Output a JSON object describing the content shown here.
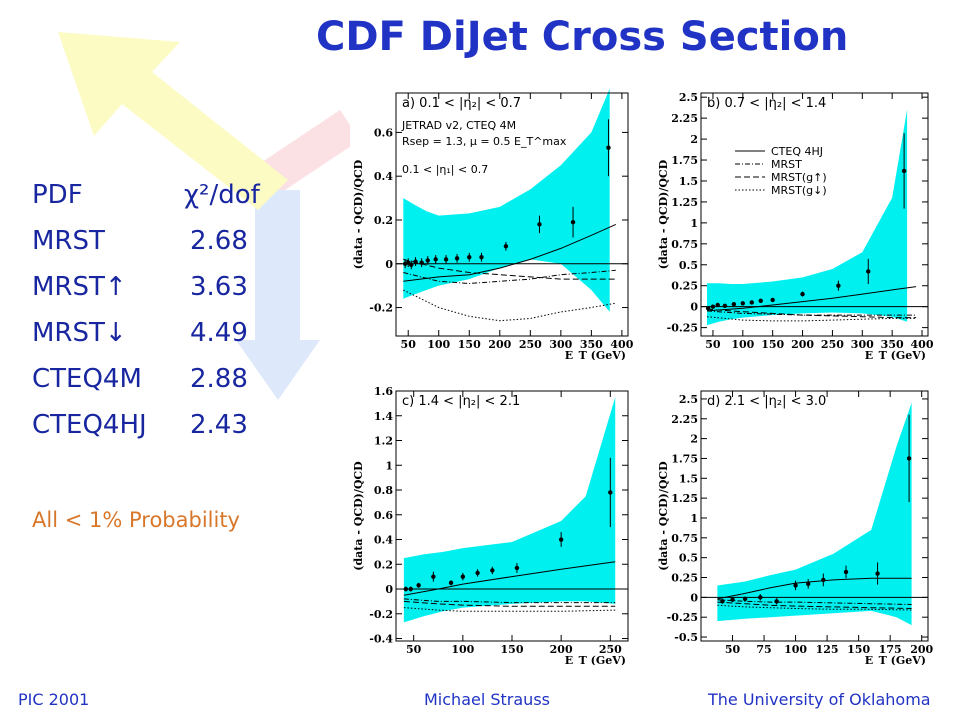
{
  "slide": {
    "title": "CDF DiJet Cross Section",
    "footer_left": "PIC 2001",
    "footer_center": "Michael Strauss",
    "footer_right": "The University of Oklahoma",
    "note": "All < 1% Probability",
    "colors": {
      "title": "#2133c4",
      "table": "#1826a0",
      "note": "#d8772a",
      "band": "#00f0f0"
    }
  },
  "pdf_table": {
    "header_name": "PDF",
    "header_value": "χ²/dof",
    "rows": [
      {
        "name": "MRST",
        "value": "2.68"
      },
      {
        "name": "MRST↑",
        "value": "3.63"
      },
      {
        "name": "MRST↓",
        "value": "4.49"
      },
      {
        "name": "CTEQ4M",
        "value": "2.88"
      },
      {
        "name": "CTEQ4HJ",
        "value": "2.43"
      }
    ]
  },
  "chart_data": [
    {
      "type": "scatter",
      "panel_label": "a) 0.1 < |η₂| < 0.7",
      "ylabel": "(data - QCD)/QCD",
      "xlabel": "E_T (GeV)",
      "xlim": [
        30,
        410
      ],
      "ylim": [
        -0.33,
        0.78
      ],
      "xticks": [
        50,
        100,
        150,
        200,
        250,
        300,
        350,
        400
      ],
      "yticks": [
        -0.2,
        0,
        0.2,
        0.4,
        0.6
      ],
      "annotations": [
        "JETRAD v2, CTEQ 4M",
        "Rsep = 1.3, μ = 0.5 E_T^max",
        "0.1 < |η₁| < 0.7"
      ],
      "points": [
        [
          45,
          0.0
        ],
        [
          50,
          0.005
        ],
        [
          55,
          -0.005
        ],
        [
          62,
          0.01
        ],
        [
          72,
          0.005
        ],
        [
          82,
          0.015
        ],
        [
          95,
          0.02
        ],
        [
          112,
          0.02
        ],
        [
          130,
          0.025
        ],
        [
          150,
          0.03
        ],
        [
          170,
          0.03
        ],
        [
          210,
          0.08
        ],
        [
          265,
          0.18
        ],
        [
          320,
          0.19
        ],
        [
          378,
          0.53
        ]
      ],
      "errors": [
        0.02,
        0.02,
        0.02,
        0.02,
        0.02,
        0.02,
        0.02,
        0.02,
        0.02,
        0.02,
        0.02,
        0.02,
        0.04,
        0.07,
        0.13
      ],
      "band_x": [
        42,
        60,
        80,
        100,
        150,
        200,
        250,
        300,
        350,
        380
      ],
      "band_low": [
        -0.16,
        -0.14,
        -0.12,
        -0.1,
        -0.07,
        -0.02,
        0.02,
        0.0,
        -0.12,
        -0.22
      ],
      "band_high": [
        0.3,
        0.27,
        0.24,
        0.22,
        0.23,
        0.26,
        0.34,
        0.45,
        0.6,
        0.8
      ],
      "curves": [
        {
          "name": "CTEQ 4HJ",
          "style": "solid",
          "x": [
            42,
            100,
            150,
            200,
            250,
            300,
            350,
            390
          ],
          "y": [
            -0.08,
            -0.06,
            -0.05,
            -0.02,
            0.02,
            0.07,
            0.13,
            0.18
          ]
        },
        {
          "name": "MRST",
          "style": "dashdot",
          "x": [
            42,
            100,
            150,
            200,
            250,
            300,
            350,
            390
          ],
          "y": [
            -0.04,
            -0.08,
            -0.09,
            -0.08,
            -0.07,
            -0.05,
            -0.04,
            -0.03
          ]
        },
        {
          "name": "MRST(g↑)",
          "style": "dashed",
          "x": [
            42,
            100,
            150,
            200,
            250,
            300,
            350,
            390
          ],
          "y": [
            0.02,
            -0.02,
            -0.04,
            -0.05,
            -0.06,
            -0.07,
            -0.07,
            -0.07
          ]
        },
        {
          "name": "MRST(g↓)",
          "style": "dotted",
          "x": [
            42,
            100,
            150,
            200,
            250,
            300,
            350,
            390
          ],
          "y": [
            -0.12,
            -0.2,
            -0.24,
            -0.26,
            -0.25,
            -0.22,
            -0.2,
            -0.18
          ]
        }
      ]
    },
    {
      "type": "scatter",
      "panel_label": "b) 0.7 < |η₂| < 1.4",
      "ylabel": "(data - QCD)/QCD",
      "xlabel": "E_T (GeV)",
      "xlim": [
        30,
        410
      ],
      "ylim": [
        -0.35,
        2.55
      ],
      "xticks": [
        50,
        100,
        150,
        200,
        250,
        300,
        350,
        400
      ],
      "yticks": [
        -0.25,
        0,
        0.25,
        0.5,
        0.75,
        1,
        1.25,
        1.5,
        1.75,
        2,
        2.25,
        2.5
      ],
      "legend": [
        "CTEQ 4HJ",
        "MRST",
        "MRST(g↑)",
        "MRST(g↓)"
      ],
      "points": [
        [
          42,
          -0.02
        ],
        [
          50,
          0.0
        ],
        [
          58,
          0.02
        ],
        [
          70,
          0.01
        ],
        [
          85,
          0.03
        ],
        [
          100,
          0.04
        ],
        [
          115,
          0.05
        ],
        [
          130,
          0.07
        ],
        [
          150,
          0.08
        ],
        [
          200,
          0.15
        ],
        [
          260,
          0.25
        ],
        [
          310,
          0.42
        ],
        [
          370,
          1.62
        ]
      ],
      "errors": [
        0.02,
        0.02,
        0.02,
        0.02,
        0.02,
        0.02,
        0.02,
        0.02,
        0.02,
        0.03,
        0.06,
        0.15,
        0.45
      ],
      "band_x": [
        40,
        60,
        80,
        100,
        150,
        200,
        250,
        300,
        350,
        375
      ],
      "band_low": [
        -0.22,
        -0.18,
        -0.15,
        -0.13,
        -0.1,
        -0.08,
        -0.07,
        -0.08,
        -0.12,
        -0.18
      ],
      "band_high": [
        0.28,
        0.28,
        0.27,
        0.27,
        0.3,
        0.35,
        0.45,
        0.65,
        1.3,
        2.35
      ],
      "curves": [
        {
          "name": "CTEQ 4HJ",
          "style": "solid",
          "x": [
            40,
            100,
            150,
            200,
            250,
            300,
            350,
            390
          ],
          "y": [
            -0.05,
            -0.02,
            0.02,
            0.06,
            0.1,
            0.15,
            0.2,
            0.24
          ]
        },
        {
          "name": "MRST",
          "style": "dashdot",
          "x": [
            40,
            100,
            150,
            200,
            250,
            300,
            350,
            390
          ],
          "y": [
            -0.05,
            -0.08,
            -0.09,
            -0.1,
            -0.1,
            -0.1,
            -0.1,
            -0.1
          ]
        },
        {
          "name": "MRST(g↑)",
          "style": "dashed",
          "x": [
            40,
            100,
            150,
            200,
            250,
            300,
            350,
            390
          ],
          "y": [
            -0.03,
            -0.06,
            -0.08,
            -0.1,
            -0.11,
            -0.12,
            -0.13,
            -0.13
          ]
        },
        {
          "name": "MRST(g↓)",
          "style": "dotted",
          "x": [
            40,
            100,
            150,
            200,
            250,
            300,
            350,
            390
          ],
          "y": [
            -0.12,
            -0.16,
            -0.17,
            -0.17,
            -0.16,
            -0.15,
            -0.14,
            -0.14
          ]
        }
      ]
    },
    {
      "type": "scatter",
      "panel_label": "c) 1.4 < |η₂| < 2.1",
      "ylabel": "(data - QCD)/QCD",
      "xlabel": "E_T (GeV)",
      "xlim": [
        32,
        268
      ],
      "ylim": [
        -0.42,
        1.6
      ],
      "xticks": [
        50,
        100,
        150,
        200,
        250
      ],
      "yticks": [
        -0.4,
        -0.2,
        0,
        0.2,
        0.4,
        0.6,
        0.8,
        1,
        1.2,
        1.4,
        1.6
      ],
      "points": [
        [
          42,
          0.0
        ],
        [
          47,
          0.0
        ],
        [
          55,
          0.03
        ],
        [
          70,
          0.1
        ],
        [
          88,
          0.05
        ],
        [
          100,
          0.1
        ],
        [
          115,
          0.13
        ],
        [
          130,
          0.15
        ],
        [
          155,
          0.17
        ],
        [
          200,
          0.4
        ],
        [
          250,
          0.78
        ]
      ],
      "errors": [
        0.02,
        0.02,
        0.02,
        0.04,
        0.02,
        0.03,
        0.03,
        0.03,
        0.04,
        0.06,
        0.28
      ],
      "band_x": [
        40,
        60,
        80,
        100,
        150,
        200,
        225,
        255
      ],
      "band_low": [
        -0.27,
        -0.22,
        -0.18,
        -0.15,
        -0.12,
        -0.1,
        -0.1,
        -0.12
      ],
      "band_high": [
        0.25,
        0.28,
        0.3,
        0.33,
        0.38,
        0.55,
        0.75,
        1.55
      ],
      "curves": [
        {
          "name": "CTEQ 4HJ",
          "style": "solid",
          "x": [
            40,
            75,
            100,
            150,
            200,
            255
          ],
          "y": [
            -0.05,
            0.0,
            0.04,
            0.1,
            0.16,
            0.22
          ]
        },
        {
          "name": "MRST",
          "style": "dashdot",
          "x": [
            40,
            75,
            100,
            150,
            200,
            255
          ],
          "y": [
            -0.08,
            -0.1,
            -0.1,
            -0.11,
            -0.11,
            -0.11
          ]
        },
        {
          "name": "MRST(g↑)",
          "style": "dashed",
          "x": [
            40,
            75,
            100,
            150,
            200,
            255
          ],
          "y": [
            -0.1,
            -0.12,
            -0.13,
            -0.14,
            -0.14,
            -0.14
          ]
        },
        {
          "name": "MRST(g↓)",
          "style": "dotted",
          "x": [
            40,
            75,
            100,
            150,
            200,
            255
          ],
          "y": [
            -0.15,
            -0.17,
            -0.18,
            -0.18,
            -0.18,
            -0.17
          ]
        }
      ]
    },
    {
      "type": "scatter",
      "panel_label": "d) 2.1 < |η₂| < 3.0",
      "ylabel": "(data - QCD)/QCD",
      "xlabel": "E_T (GeV)",
      "xlim": [
        25,
        205
      ],
      "ylim": [
        -0.55,
        2.6
      ],
      "xticks": [
        50,
        75,
        100,
        125,
        150,
        175,
        200
      ],
      "yticks": [
        -0.5,
        -0.25,
        0,
        0.25,
        0.5,
        0.75,
        1,
        1.25,
        1.5,
        1.75,
        2,
        2.25,
        2.5
      ],
      "points": [
        [
          42,
          -0.05
        ],
        [
          50,
          -0.03
        ],
        [
          60,
          -0.02
        ],
        [
          72,
          0.0
        ],
        [
          85,
          -0.05
        ],
        [
          100,
          0.15
        ],
        [
          110,
          0.17
        ],
        [
          122,
          0.22
        ],
        [
          140,
          0.32
        ],
        [
          165,
          0.3
        ],
        [
          190,
          1.75
        ]
      ],
      "errors": [
        0.03,
        0.03,
        0.03,
        0.04,
        0.04,
        0.06,
        0.06,
        0.08,
        0.08,
        0.14,
        0.55
      ],
      "band_x": [
        38,
        60,
        80,
        100,
        130,
        160,
        180,
        192
      ],
      "band_low": [
        -0.3,
        -0.27,
        -0.25,
        -0.23,
        -0.2,
        -0.17,
        -0.25,
        -0.35
      ],
      "band_high": [
        0.15,
        0.2,
        0.28,
        0.35,
        0.55,
        0.85,
        1.9,
        2.45
      ],
      "curves": [
        {
          "name": "CTEQ 4HJ",
          "style": "solid",
          "x": [
            38,
            60,
            80,
            100,
            130,
            160,
            192
          ],
          "y": [
            -0.02,
            0.05,
            0.12,
            0.18,
            0.22,
            0.24,
            0.24
          ]
        },
        {
          "name": "MRST",
          "style": "dashdot",
          "x": [
            38,
            60,
            80,
            100,
            130,
            160,
            192
          ],
          "y": [
            -0.03,
            -0.05,
            -0.06,
            -0.06,
            -0.07,
            -0.08,
            -0.09
          ]
        },
        {
          "name": "MRST(g↑)",
          "style": "dashed",
          "x": [
            38,
            60,
            80,
            100,
            130,
            160,
            192
          ],
          "y": [
            -0.06,
            -0.08,
            -0.1,
            -0.11,
            -0.12,
            -0.13,
            -0.14
          ]
        },
        {
          "name": "MRST(g↓)",
          "style": "dotted",
          "x": [
            38,
            60,
            80,
            100,
            130,
            160,
            192
          ],
          "y": [
            -0.1,
            -0.12,
            -0.13,
            -0.14,
            -0.15,
            -0.15,
            -0.16
          ]
        }
      ]
    }
  ]
}
